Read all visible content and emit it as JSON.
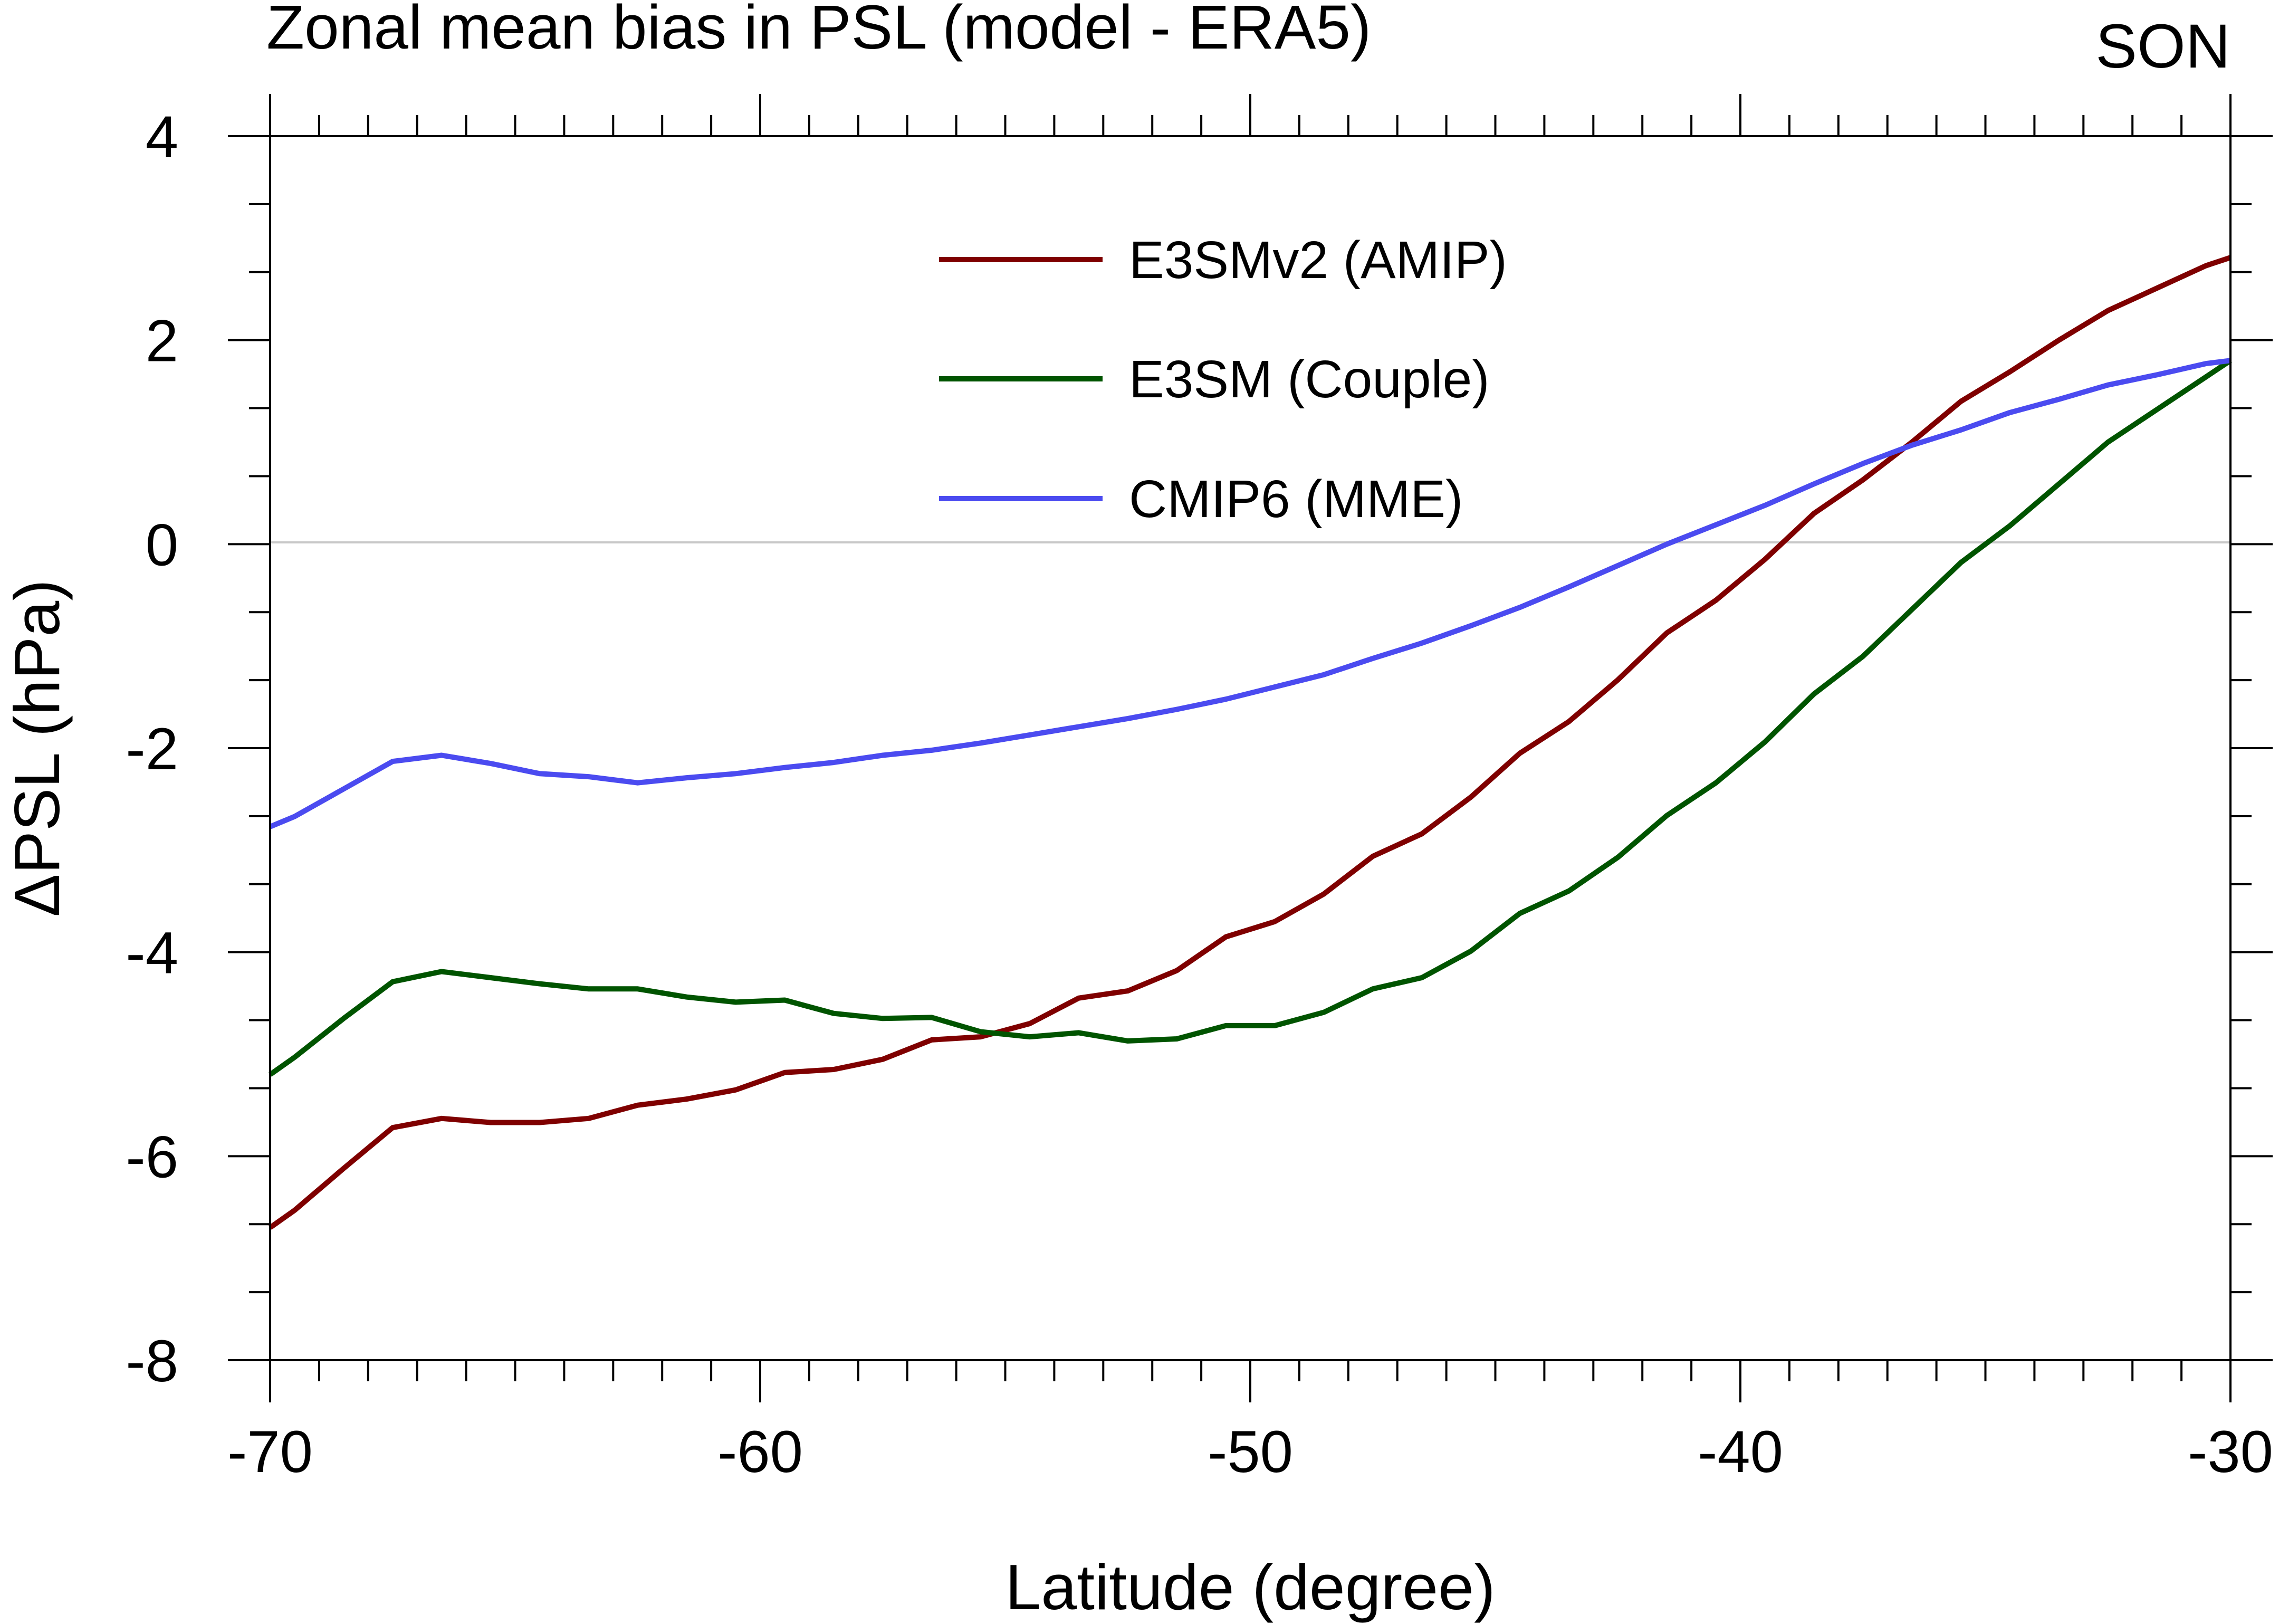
{
  "chart_data": {
    "type": "line",
    "title": "Zonal mean bias in PSL (model - ERA5)",
    "season": "SON",
    "xlabel": "Latitude (degree)",
    "ylabel": "ΔPSL (hPa)",
    "xlim": [
      -70,
      -30
    ],
    "ylim": [
      -8,
      4
    ],
    "x_ticks": [
      -70,
      -60,
      -50,
      -40,
      -30
    ],
    "x_tick_labels": [
      "-70",
      "-60",
      "-50",
      "-40",
      "-30"
    ],
    "y_ticks": [
      4,
      2,
      0,
      -2,
      -4,
      -6,
      -8
    ],
    "y_tick_labels": [
      "4",
      "2",
      "0",
      "-2",
      "-4",
      "-6",
      "-8"
    ],
    "x_minor_step": 1,
    "y_minor_step": 0.666667,
    "zero_line": true,
    "grid": false,
    "legend_position": "top-center",
    "x": [
      -70,
      -69.5,
      -68.5,
      -67.5,
      -66.5,
      -65.5,
      -64.5,
      -63.5,
      -62.5,
      -61.5,
      -60.5,
      -59.5,
      -58.5,
      -57.5,
      -56.5,
      -55.5,
      -54.5,
      -53.5,
      -52.5,
      -51.5,
      -50.5,
      -49.5,
      -48.5,
      -47.5,
      -46.5,
      -45.5,
      -44.5,
      -43.5,
      -42.5,
      -41.5,
      -40.5,
      -39.5,
      -38.5,
      -37.5,
      -36.5,
      -35.5,
      -34.5,
      -33.5,
      -32.5,
      -31.5,
      -30.5,
      -30
    ],
    "series": [
      {
        "name": "E3SMv2 (AMIP)",
        "color": "#7f0000",
        "values": [
          -6.7,
          -6.53,
          -6.12,
          -5.72,
          -5.63,
          -5.67,
          -5.67,
          -5.63,
          -5.5,
          -5.44,
          -5.35,
          -5.18,
          -5.15,
          -5.05,
          -4.86,
          -4.83,
          -4.7,
          -4.45,
          -4.38,
          -4.18,
          -3.85,
          -3.7,
          -3.43,
          -3.06,
          -2.84,
          -2.48,
          -2.05,
          -1.74,
          -1.33,
          -0.87,
          -0.55,
          -0.15,
          0.3,
          0.63,
          1.0,
          1.4,
          1.69,
          2.0,
          2.29,
          2.51,
          2.73,
          2.81
        ]
      },
      {
        "name": "E3SM (Couple)",
        "color": "#005400",
        "values": [
          -5.2,
          -5.03,
          -4.65,
          -4.29,
          -4.19,
          -4.25,
          -4.31,
          -4.36,
          -4.36,
          -4.44,
          -4.49,
          -4.47,
          -4.6,
          -4.65,
          -4.64,
          -4.78,
          -4.83,
          -4.79,
          -4.87,
          -4.85,
          -4.72,
          -4.72,
          -4.59,
          -4.36,
          -4.25,
          -3.99,
          -3.62,
          -3.4,
          -3.07,
          -2.66,
          -2.34,
          -1.94,
          -1.47,
          -1.1,
          -0.64,
          -0.18,
          0.18,
          0.59,
          1.0,
          1.32,
          1.64,
          1.8
        ]
      },
      {
        "name": "CMIP6 (MME)",
        "color": "#4b4bf0",
        "values": [
          -2.77,
          -2.67,
          -2.4,
          -2.13,
          -2.07,
          -2.15,
          -2.25,
          -2.28,
          -2.34,
          -2.29,
          -2.25,
          -2.19,
          -2.14,
          -2.07,
          -2.02,
          -1.95,
          -1.87,
          -1.79,
          -1.71,
          -1.62,
          -1.52,
          -1.4,
          -1.28,
          -1.12,
          -0.97,
          -0.8,
          -0.62,
          -0.42,
          -0.21,
          0.0,
          0.19,
          0.38,
          0.59,
          0.79,
          0.97,
          1.12,
          1.29,
          1.42,
          1.56,
          1.66,
          1.77,
          1.8
        ]
      }
    ]
  }
}
